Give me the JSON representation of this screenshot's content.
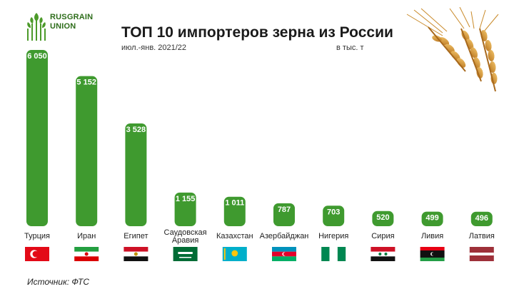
{
  "brand": {
    "line1": "RUSGRAIN",
    "line2": "UNION"
  },
  "header": {
    "title": "ТОП 10 импортеров зерна из России",
    "subtitle": "июл.-янв.  2021/22",
    "unit": "в тыс. т"
  },
  "footer": {
    "source": "Источник: ФТС"
  },
  "colors": {
    "bar": "#3f9a2f",
    "bar_dark": "#2f8a22",
    "label_bg": "#3f9a2f"
  },
  "chart_data": {
    "type": "bar",
    "title": "ТОП 10 импортеров зерна из России",
    "subtitle": "июл.-янв.  2021/22",
    "unit": "в тыс. т",
    "categories": [
      "Турция",
      "Иран",
      "Египет",
      "Саудовская Аравия",
      "Казахстан",
      "Азербайджан",
      "Нигерия",
      "Сирия",
      "Ливия",
      "Латвия"
    ],
    "category_lines": [
      [
        "Турция"
      ],
      [
        "Иран"
      ],
      [
        "Египет"
      ],
      [
        "Саудовская",
        "Аравия"
      ],
      [
        "Казахстан"
      ],
      [
        "Азербайджан"
      ],
      [
        "Нигерия"
      ],
      [
        "Сирия"
      ],
      [
        "Ливия"
      ],
      [
        "Латвия"
      ]
    ],
    "values": [
      6050,
      5152,
      3528,
      1155,
      1011,
      787,
      703,
      520,
      499,
      496
    ],
    "value_labels": [
      "6 050",
      "5 152",
      "3 528",
      "1 155",
      "1 011",
      "787",
      "703",
      "520",
      "499",
      "496"
    ],
    "flags": [
      "turkey-flag",
      "iran-flag",
      "egypt-flag",
      "saudi-arabia-flag",
      "kazakhstan-flag",
      "azerbaijan-flag",
      "nigeria-flag",
      "syria-flag",
      "libya-flag",
      "latvia-flag"
    ],
    "ylim": [
      0,
      6050
    ],
    "grid": false,
    "legend": "none"
  }
}
